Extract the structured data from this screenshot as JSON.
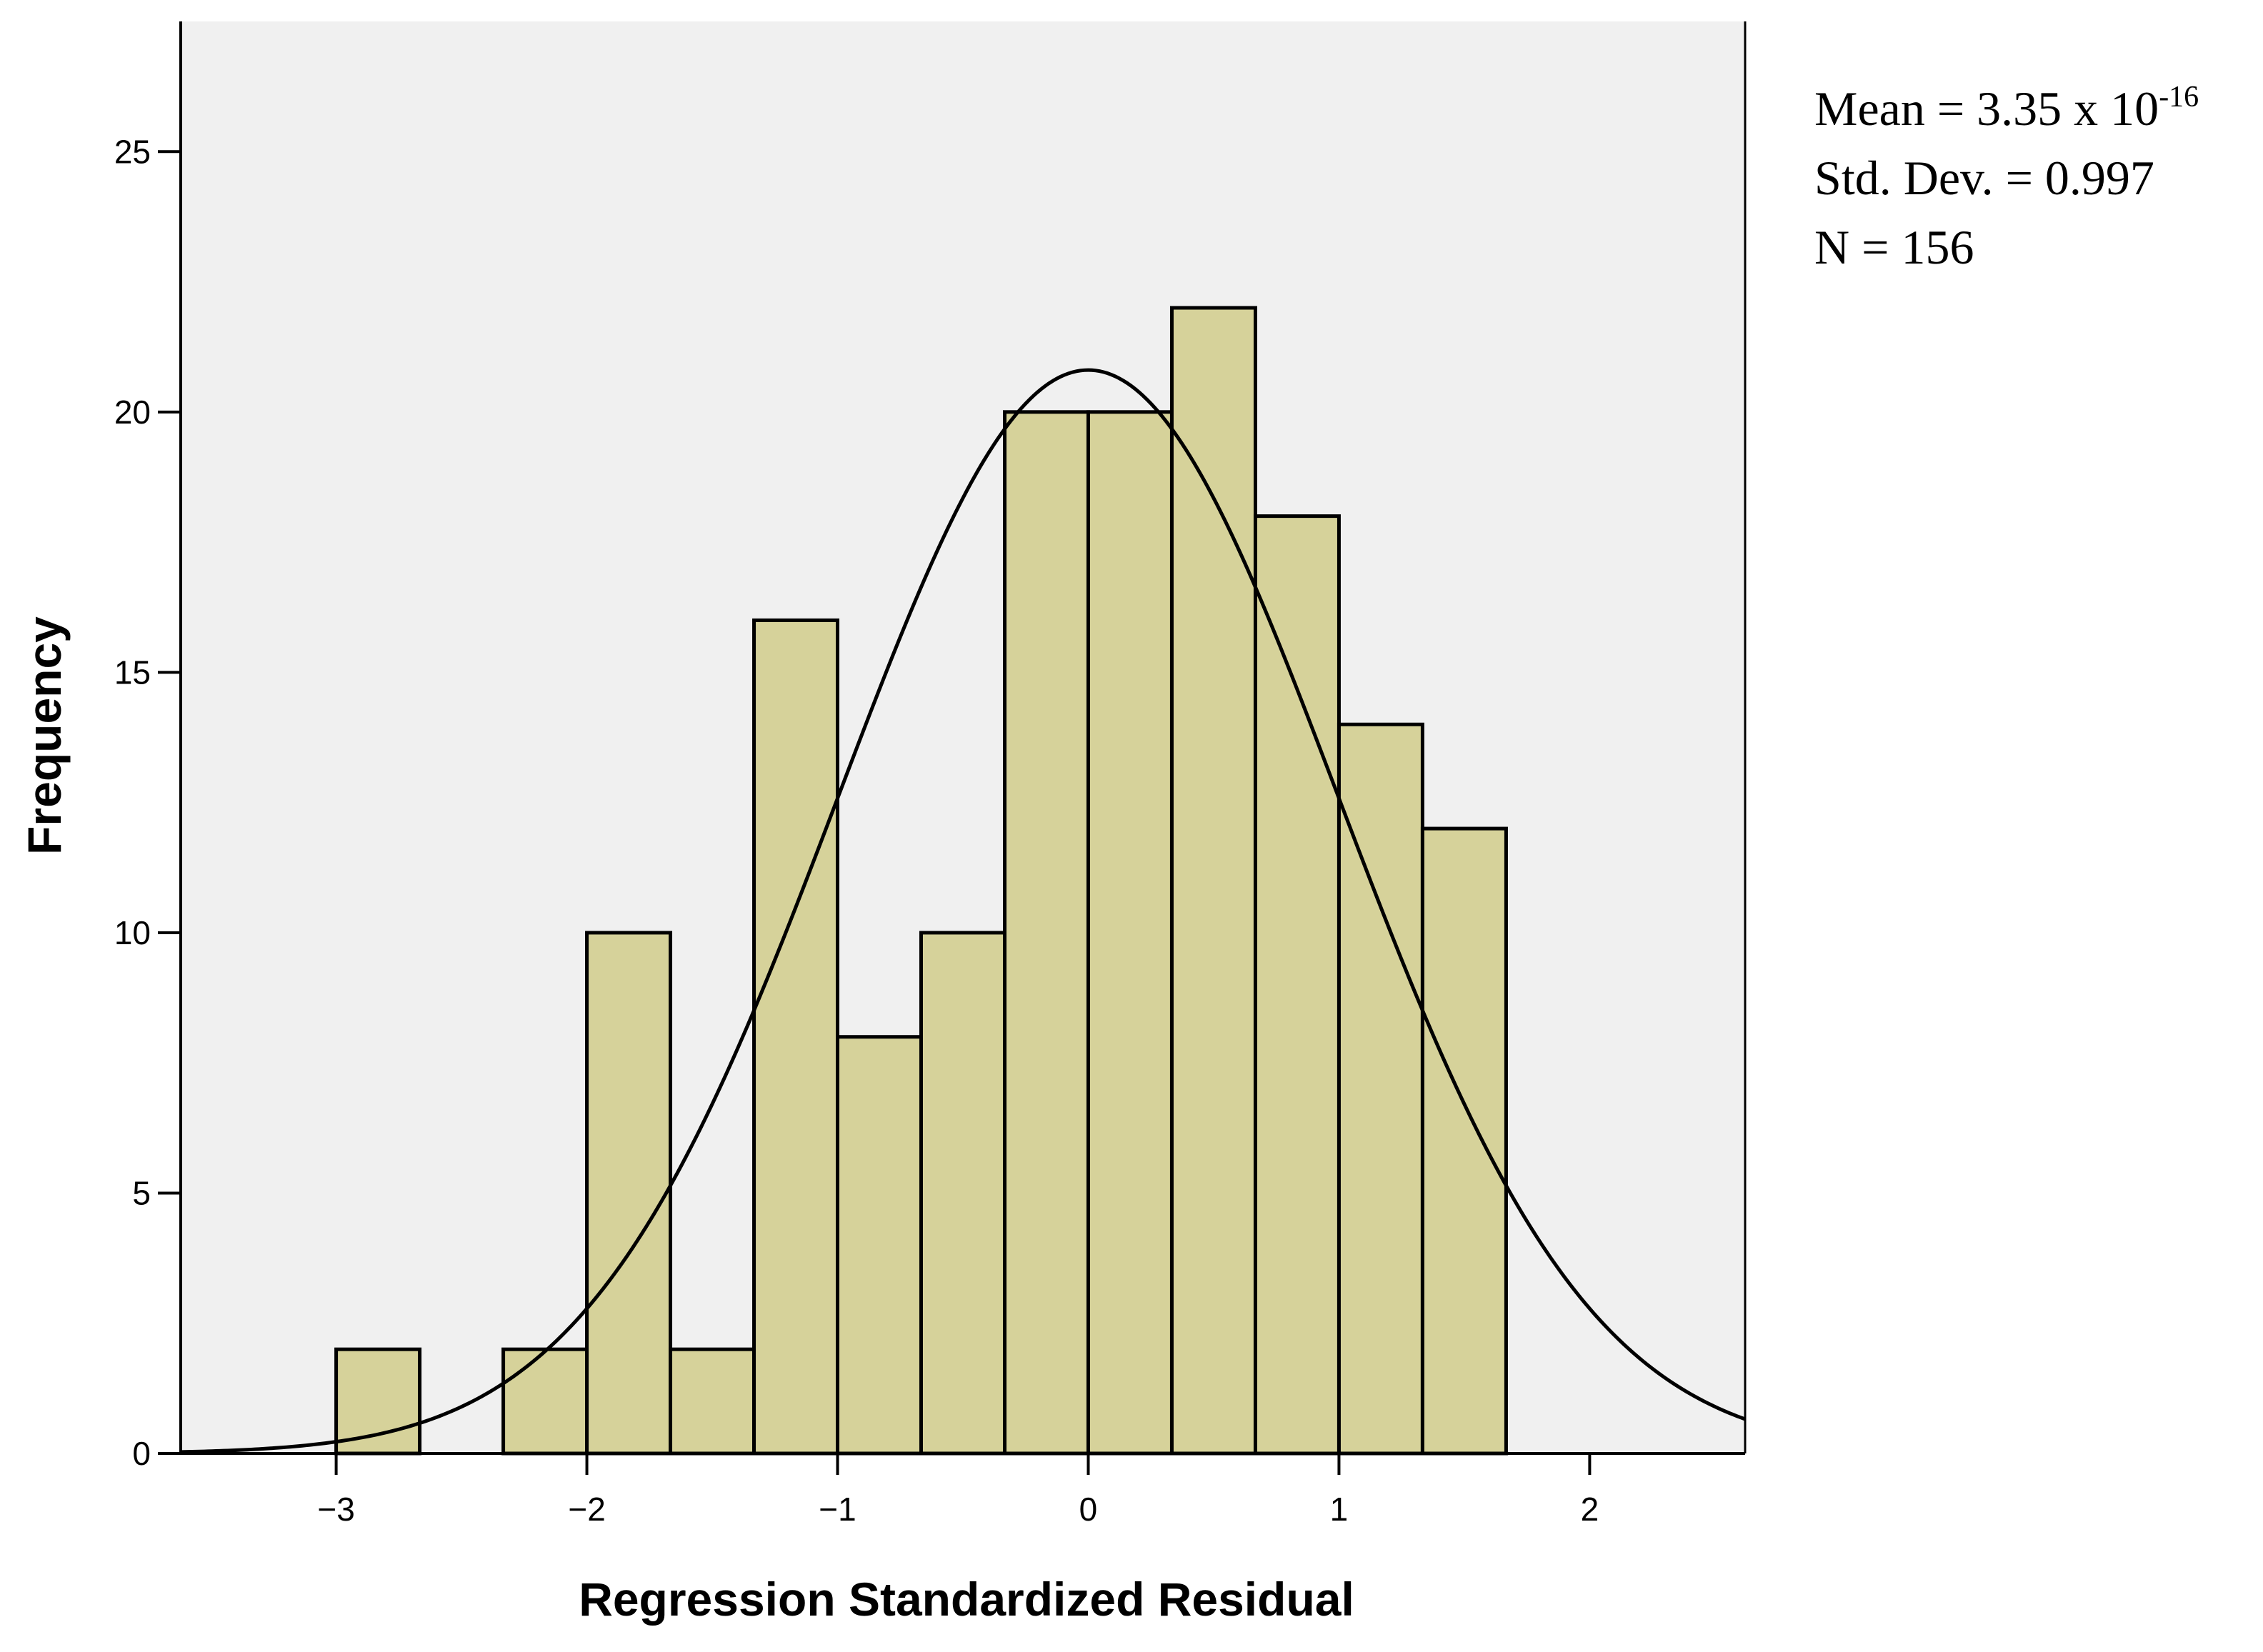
{
  "chart_data": {
    "type": "bar",
    "subtype": "histogram",
    "xlabel": "Regression Standardized Residual",
    "ylabel": "Frequency",
    "xlim": [
      -3.62,
      2.62
    ],
    "ylim": [
      0,
      27.5
    ],
    "xticks": [
      -3,
      -2,
      -1,
      0,
      1,
      2
    ],
    "xtick_labels": [
      "−3",
      "−2",
      "−1",
      "0",
      "1",
      "2"
    ],
    "yticks": [
      0,
      5,
      10,
      15,
      20,
      25
    ],
    "ytick_labels": [
      "0",
      "5",
      "10",
      "15",
      "20",
      "25"
    ],
    "bin_width": 0.3333,
    "bins": [
      {
        "start": -3.0,
        "end": -2.6667,
        "count": 2
      },
      {
        "start": -2.3333,
        "end": -2.0,
        "count": 2
      },
      {
        "start": -2.0,
        "end": -1.6667,
        "count": 10
      },
      {
        "start": -1.6667,
        "end": -1.3333,
        "count": 2
      },
      {
        "start": -1.3333,
        "end": -1.0,
        "count": 16
      },
      {
        "start": -1.0,
        "end": -0.6667,
        "count": 8
      },
      {
        "start": -0.6667,
        "end": -0.3333,
        "count": 10
      },
      {
        "start": -0.3333,
        "end": 0.0,
        "count": 20
      },
      {
        "start": 0.0,
        "end": 0.3333,
        "count": 20
      },
      {
        "start": 0.3333,
        "end": 0.6667,
        "count": 22
      },
      {
        "start": 0.6667,
        "end": 1.0,
        "count": 18
      },
      {
        "start": 1.0,
        "end": 1.3333,
        "count": 14
      },
      {
        "start": 1.3333,
        "end": 1.6667,
        "count": 12
      }
    ],
    "normal_curve": {
      "mean": 0.0,
      "sd": 0.997,
      "n": 156
    },
    "grid": false,
    "colors": {
      "bar_fill": "#d6d29a",
      "bar_edge": "#000000",
      "plot_background": "#f0f0f0",
      "curve": "#000000"
    }
  },
  "stats": {
    "mean_label": "Mean = 3.35 x 10",
    "mean_exponent": "-16",
    "std_label": "Std. Dev. = 0.997",
    "n_label": "N = 156"
  }
}
